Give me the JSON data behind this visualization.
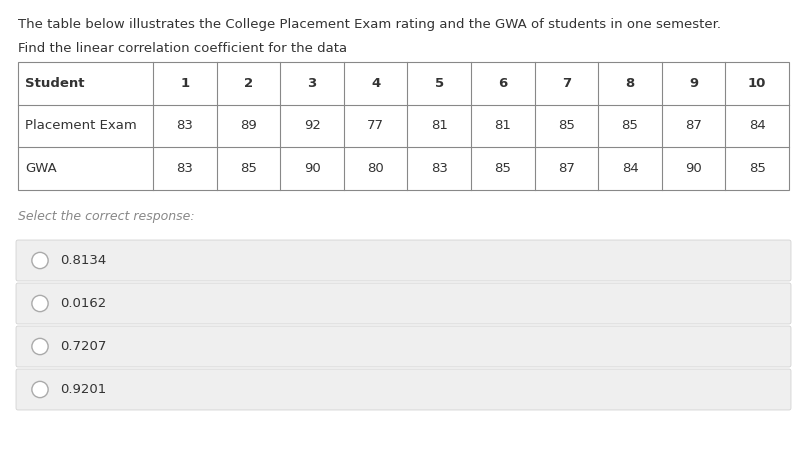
{
  "title_line1": "The table below illustrates the College Placement Exam rating and the GWA of students in one semester.",
  "title_line2": "Find the linear correlation coefficient for the data",
  "table_headers": [
    "Student",
    "1",
    "2",
    "3",
    "4",
    "5",
    "6",
    "7",
    "8",
    "9",
    "10"
  ],
  "row1_label": "Placement Exam",
  "row1_values": [
    83,
    89,
    92,
    77,
    81,
    81,
    85,
    85,
    87,
    84
  ],
  "row2_label": "GWA",
  "row2_values": [
    83,
    85,
    90,
    80,
    83,
    85,
    87,
    84,
    90,
    85
  ],
  "select_text": "Select the correct response:",
  "options": [
    "0.8134",
    "0.0162",
    "0.7207",
    "0.9201"
  ],
  "bg_color": "#ffffff",
  "option_bg": "#efefef",
  "text_color": "#333333",
  "select_color": "#888888",
  "border_color": "#888888",
  "title_fontsize": 9.5,
  "table_fontsize": 9.5,
  "option_fontsize": 9.5,
  "select_fontsize": 9.0,
  "col_widths_ratio": [
    1.7,
    0.8,
    0.8,
    0.8,
    0.8,
    0.8,
    0.8,
    0.8,
    0.8,
    0.8,
    0.8
  ]
}
